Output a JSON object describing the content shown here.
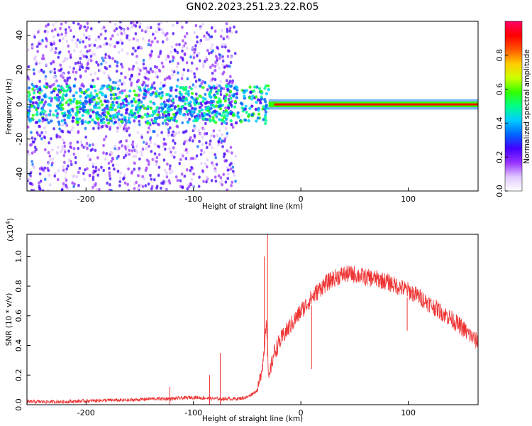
{
  "figure_title": "GN02.2023.251.23.22.R05",
  "chart_data": [
    {
      "type": "heatmap",
      "title": "GN02.2023.251.23.22.R05",
      "xlabel": "Height of straight line (km)",
      "ylabel": "Frequency (Hz)",
      "xlim": [
        -255,
        165
      ],
      "ylim": [
        -50,
        48
      ],
      "xticks": [
        -200,
        -100,
        0,
        100
      ],
      "xtick_labels": [
        "-200",
        "-100",
        "0",
        "100"
      ],
      "yticks": [
        -40,
        -20,
        0,
        20,
        40
      ],
      "ytick_labels": [
        "-40",
        "-20",
        "0",
        "20",
        "40"
      ],
      "colorbar": {
        "label": "Normalized spectral amplitude",
        "range": [
          0.0,
          1.0
        ],
        "ticks": [
          0.0,
          0.2,
          0.4,
          0.6,
          0.8
        ],
        "tick_labels": [
          "0.0",
          "0.2",
          "0.4",
          "0.6",
          "0.8"
        ],
        "colormap": [
          "#ffffff",
          "#e0c8ff",
          "#9933ff",
          "#4400ff",
          "#0066ff",
          "#00ccff",
          "#00ff88",
          "#33ff00",
          "#ccff00",
          "#ffcc00",
          "#ff5500",
          "#ff0000",
          "#ff0066"
        ]
      },
      "features": {
        "scatter_region_x": [
          -255,
          -60
        ],
        "transition_x": [
          -55,
          -30
        ],
        "steady_line_x": [
          -30,
          165
        ],
        "steady_line_freq": 0,
        "steady_line_amplitude": 0.95
      },
      "grid": false
    },
    {
      "type": "line",
      "xlabel": "Height of straight line (km)",
      "ylabel": "SNR (10 * v/v)",
      "yscale_label": "(x10",
      "yscale_exponent": "4",
      "yscale_suffix": ")",
      "xlim": [
        -255,
        165
      ],
      "ylim": [
        0.0,
        1.15
      ],
      "xticks": [
        -200,
        -100,
        0,
        100
      ],
      "xtick_labels": [
        "-200",
        "-100",
        "0",
        "100"
      ],
      "yticks": [
        0.0,
        0.2,
        0.4,
        0.6,
        0.8,
        1.0
      ],
      "ytick_labels": [
        "0.0",
        "0.2",
        "0.4",
        "0.6",
        "0.8",
        "1.0"
      ],
      "series": [
        {
          "color": "#ee3333",
          "x": [
            -255,
            -240,
            -220,
            -200,
            -180,
            -160,
            -140,
            -120,
            -100,
            -80,
            -70,
            -60,
            -50,
            -40,
            -35,
            -32,
            -30,
            -28,
            -25,
            -20,
            -15,
            -10,
            -5,
            0,
            10,
            20,
            30,
            40,
            50,
            60,
            70,
            80,
            90,
            100,
            110,
            120,
            130,
            140,
            150,
            160,
            165
          ],
          "values": [
            0.02,
            0.02,
            0.02,
            0.025,
            0.03,
            0.03,
            0.04,
            0.04,
            0.05,
            0.04,
            0.04,
            0.04,
            0.05,
            0.1,
            0.3,
            0.6,
            0.15,
            0.25,
            0.35,
            0.42,
            0.48,
            0.53,
            0.58,
            0.63,
            0.72,
            0.8,
            0.85,
            0.88,
            0.88,
            0.86,
            0.85,
            0.83,
            0.8,
            0.77,
            0.73,
            0.68,
            0.63,
            0.58,
            0.52,
            0.45,
            0.42
          ]
        }
      ],
      "spikes": [
        {
          "x": -122,
          "value": 0.12
        },
        {
          "x": -85,
          "value": 0.2
        },
        {
          "x": -75,
          "value": 0.35
        },
        {
          "x": -34,
          "value": 1.0
        },
        {
          "x": -31,
          "value": 1.15
        },
        {
          "x": 10,
          "value": 0.24
        },
        {
          "x": 73,
          "value": 0.8
        },
        {
          "x": 99,
          "value": 0.5
        }
      ],
      "grid": false
    }
  ]
}
